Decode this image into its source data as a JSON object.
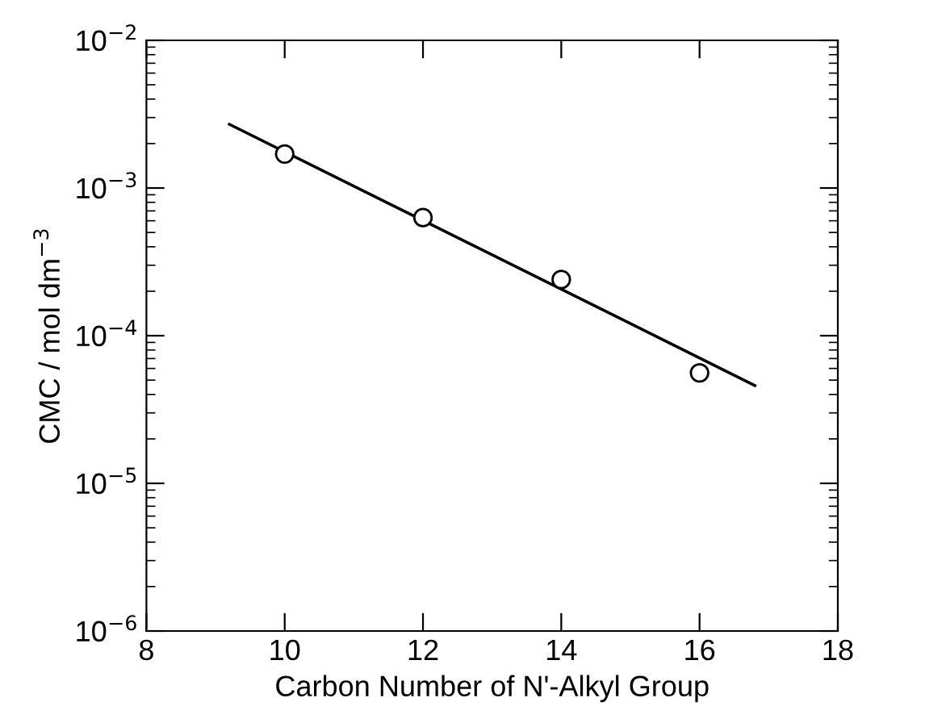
{
  "chart_data": {
    "type": "scatter",
    "xlabel": "Carbon Number of N'-Alkyl Group",
    "ylabel": "CMC / mol dm$^{−3}$",
    "log": "y",
    "xlim": [
      8,
      18
    ],
    "xticks": [
      8,
      10,
      12,
      14,
      16,
      18
    ],
    "ylim": [
      1e-06,
      0.01
    ],
    "yticks": [
      {
        "value": 1e-06,
        "label": "10$^{−6}$"
      },
      {
        "value": 1e-05,
        "label": "10$^{−5}$"
      },
      {
        "value": 0.0001,
        "label": "10$^{−4}$"
      },
      {
        "value": 0.001,
        "label": "10$^{−3}$"
      },
      {
        "value": 0.01,
        "label": "10$^{−2}$"
      }
    ],
    "grid": false,
    "legend": false,
    "series": [
      {
        "color": "#000000",
        "marker": "circle",
        "x": [
          10,
          12,
          14,
          16
        ],
        "values": [
          0.0017,
          0.00063,
          0.00024,
          5.6e-05
        ]
      },
      {
        "type": "line",
        "color": "#000000",
        "marker": "none",
        "line_style": "solid",
        "x": [
          9.2,
          16.8
        ],
        "values": [
          0.0027,
          4.6e-05
        ]
      }
    ]
  }
}
